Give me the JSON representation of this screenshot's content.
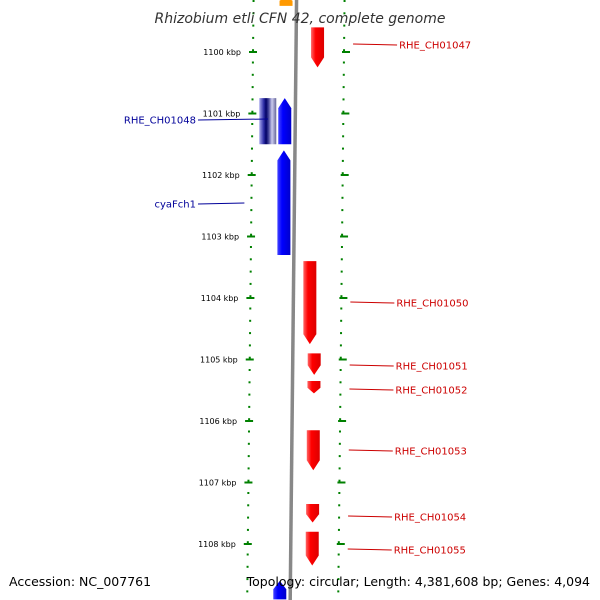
{
  "title": "Rhizobium etli CFN 42, complete genome",
  "footer": {
    "accession": "Accession: NC_007761",
    "summary": "Topology: circular; Length: 4,381,608 bp; Genes: 4,094"
  },
  "colors": {
    "forward_gene": "#ff0000",
    "reverse_gene": "#0000ff",
    "reverse_gene_dark": "#000080",
    "ruler_dots": "#008000",
    "backbone": "#888888",
    "forward_label": "#cc0000",
    "reverse_label": "#000099",
    "top_fragment": "#ff9900"
  },
  "ruler": {
    "unit": "kbp",
    "ticks": [
      {
        "kbp": 1100,
        "label": "1100 kbp"
      },
      {
        "kbp": 1101,
        "label": "1101 kbp"
      },
      {
        "kbp": 1102,
        "label": "1102 kbp"
      },
      {
        "kbp": 1103,
        "label": "1103 kbp"
      },
      {
        "kbp": 1104,
        "label": "1104 kbp"
      },
      {
        "kbp": 1105,
        "label": "1105 kbp"
      },
      {
        "kbp": 1106,
        "label": "1106 kbp"
      },
      {
        "kbp": 1107,
        "label": "1107 kbp"
      },
      {
        "kbp": 1108,
        "label": "1108 kbp"
      }
    ]
  },
  "genes": [
    {
      "name": "RHE_CH01047",
      "strand": "+",
      "start_kbp": 1099.6,
      "end_kbp": 1100.25
    },
    {
      "name": "RHE_CH01048",
      "strand": "-",
      "start_kbp": 1100.75,
      "end_kbp": 1101.5
    },
    {
      "name": "",
      "strand": "-",
      "start_kbp": 1100.75,
      "end_kbp": 1101.5
    },
    {
      "name": "cyaFch1",
      "strand": "-",
      "start_kbp": 1101.6,
      "end_kbp": 1103.3
    },
    {
      "name": "RHE_CH01050",
      "strand": "+",
      "start_kbp": 1103.4,
      "end_kbp": 1104.75
    },
    {
      "name": "RHE_CH01051",
      "strand": "+",
      "start_kbp": 1104.9,
      "end_kbp": 1105.25
    },
    {
      "name": "RHE_CH01052",
      "strand": "+",
      "start_kbp": 1105.35,
      "end_kbp": 1105.55
    },
    {
      "name": "RHE_CH01053",
      "strand": "+",
      "start_kbp": 1106.15,
      "end_kbp": 1106.8
    },
    {
      "name": "RHE_CH01054",
      "strand": "+",
      "start_kbp": 1107.35,
      "end_kbp": 1107.65
    },
    {
      "name": "RHE_CH01055",
      "strand": "+",
      "start_kbp": 1107.8,
      "end_kbp": 1108.35
    },
    {
      "name": "",
      "strand": "-",
      "start_kbp": 1108.6,
      "end_kbp": 1108.9
    },
    {
      "name": "",
      "strand": "-",
      "start_kbp": 1099.1,
      "end_kbp": 1099.25
    }
  ]
}
